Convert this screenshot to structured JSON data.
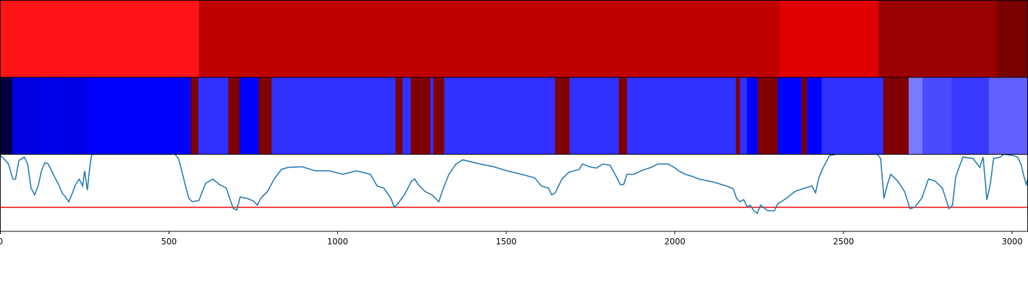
{
  "chart_data": {
    "type": "line",
    "xlim": [
      0,
      3046
    ],
    "xticks": [
      0,
      500,
      1000,
      1500,
      2000,
      2500,
      3000
    ],
    "ylim": [
      0,
      112
    ],
    "bands": [
      {
        "edges": [
          0,
          589,
          2311,
          2604,
          2955,
          3046
        ],
        "colors": [
          "#ff1515",
          "#c00000",
          "#e00000",
          "#9b0000",
          "#7a0000"
        ]
      },
      {
        "edges": [
          0,
          35,
          106,
          193,
          260,
          565,
          587,
          676,
          709,
          766,
          804,
          1172,
          1192,
          1217,
          1275,
          1284,
          1316,
          1645,
          1688,
          1834,
          1858,
          2181,
          2193,
          2214,
          2246,
          2305,
          2376,
          2391,
          2435,
          2618,
          2693,
          2734,
          2821,
          2931,
          3046
        ],
        "colors": [
          "#000040",
          "#0000e0",
          "#0000ea",
          "#0000e6",
          "#0000ff",
          "#800000",
          "#3030ff",
          "#800000",
          "#0000ff",
          "#800000",
          "#3030ff",
          "#800000",
          "#3030ff",
          "#800000",
          "#3030ff",
          "#800000",
          "#3030ff",
          "#800000",
          "#3030ff",
          "#800000",
          "#3030ff",
          "#800000",
          "#3030ff",
          "#0000ff",
          "#800000",
          "#0000ff",
          "#800000",
          "#0000ff",
          "#3030ff",
          "#800000",
          "#7a7aff",
          "#4a4aff",
          "#3a3aff",
          "#6060ff"
        ]
      }
    ],
    "x": [
      0,
      10,
      24,
      37,
      45,
      55,
      71,
      81,
      91,
      102,
      112,
      122,
      132,
      142,
      152,
      162,
      173,
      183,
      193,
      203,
      213,
      223,
      234,
      244,
      250,
      258,
      264,
      270,
      274,
      366,
      518,
      528,
      538,
      548,
      559,
      569,
      589,
      599,
      609,
      630,
      650,
      670,
      680,
      691,
      701,
      711,
      731,
      751,
      762,
      772,
      792,
      812,
      833,
      853,
      894,
      934,
      975,
      1016,
      1056,
      1097,
      1117,
      1137,
      1158,
      1168,
      1178,
      1198,
      1219,
      1229,
      1239,
      1259,
      1280,
      1300,
      1310,
      1330,
      1351,
      1371,
      1422,
      1462,
      1503,
      1544,
      1584,
      1604,
      1625,
      1635,
      1645,
      1665,
      1686,
      1716,
      1726,
      1747,
      1767,
      1787,
      1808,
      1828,
      1838,
      1848,
      1858,
      1879,
      1899,
      1929,
      1950,
      1980,
      2001,
      2011,
      2031,
      2051,
      2072,
      2112,
      2153,
      2173,
      2183,
      2193,
      2204,
      2214,
      2224,
      2234,
      2244,
      2254,
      2275,
      2295,
      2305,
      2315,
      2336,
      2356,
      2386,
      2407,
      2417,
      2427,
      2437,
      2458,
      2478,
      2600,
      2610,
      2620,
      2630,
      2640,
      2661,
      2681,
      2697,
      2711,
      2732,
      2752,
      2772,
      2793,
      2813,
      2823,
      2833,
      2854,
      2884,
      2904,
      2914,
      2925,
      2935,
      2945,
      2965,
      2975,
      3006,
      3016,
      3026,
      3036,
      3042,
      3046
    ],
    "values": [
      110,
      106,
      98,
      76,
      76,
      103,
      108,
      98,
      63,
      53,
      66,
      88,
      100,
      98,
      88,
      78,
      68,
      56,
      50,
      43,
      55,
      68,
      76,
      66,
      88,
      60,
      88,
      110,
      112,
      112,
      112,
      106,
      88,
      68,
      48,
      43,
      45,
      58,
      70,
      76,
      68,
      63,
      48,
      33,
      31,
      50,
      48,
      44,
      38,
      48,
      58,
      76,
      90,
      93,
      94,
      88,
      88,
      83,
      88,
      83,
      66,
      63,
      48,
      35,
      40,
      53,
      73,
      76,
      68,
      58,
      53,
      43,
      58,
      83,
      98,
      104,
      98,
      94,
      88,
      83,
      78,
      66,
      63,
      53,
      56,
      76,
      86,
      90,
      98,
      94,
      92,
      98,
      96,
      78,
      68,
      68,
      83,
      83,
      88,
      93,
      98,
      98,
      92,
      88,
      83,
      80,
      76,
      72,
      66,
      62,
      48,
      43,
      46,
      36,
      38,
      30,
      26,
      38,
      30,
      30,
      40,
      43,
      50,
      58,
      63,
      66,
      56,
      78,
      90,
      110,
      112,
      112,
      106,
      48,
      68,
      83,
      73,
      58,
      33,
      35,
      48,
      76,
      73,
      63,
      33,
      38,
      80,
      108,
      106,
      93,
      108,
      46,
      68,
      106,
      108,
      112,
      110,
      108,
      98,
      78,
      68,
      76
    ],
    "color": "#1f77b4",
    "hline": 35,
    "hline_color": "#ee0000"
  }
}
